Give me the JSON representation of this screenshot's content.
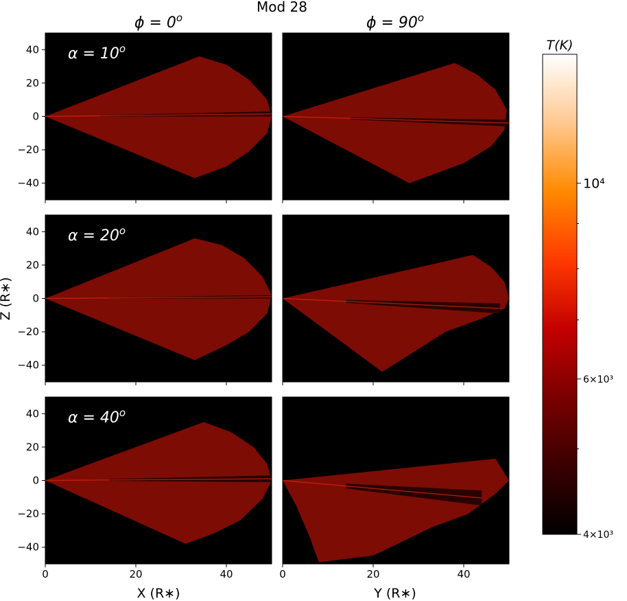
{
  "chart_data": {
    "type": "heatmap",
    "title": "Mod 28",
    "column_titles": [
      "ϕ = 0",
      "ϕ = 90"
    ],
    "column_title_superscript": "o",
    "row_labels": [
      "α = 10",
      "α = 20",
      "α = 40"
    ],
    "row_label_superscript": "o",
    "xlabels": [
      "X (R∗)",
      "Y (R∗)"
    ],
    "ylabel": "Z (R∗)",
    "xlim": [
      0,
      50
    ],
    "ylim": [
      -50,
      50
    ],
    "xticks": [
      "0",
      "20",
      "40"
    ],
    "yticks": [
      "−40",
      "−20",
      "0",
      "20",
      "40"
    ],
    "background_color": "#000000",
    "colorbar": {
      "label": "T(K)",
      "scale": "log",
      "range": [
        4000,
        14000
      ],
      "tick_labels": [
        "4×10³",
        "6×10³",
        "10⁴"
      ],
      "colors": [
        "#000000",
        "#3a0000",
        "#7a0000",
        "#c40000",
        "#ff3a00",
        "#ff8a00",
        "#ffc890",
        "#ffffff"
      ]
    },
    "panels": [
      {
        "row": "α = 10",
        "column": "ϕ = 0",
        "outline": [
          [
            0,
            0
          ],
          [
            34,
            36
          ],
          [
            40,
            31
          ],
          [
            45,
            22
          ],
          [
            49,
            10
          ],
          [
            50,
            0
          ],
          [
            49,
            -10
          ],
          [
            45,
            -21
          ],
          [
            40,
            -30
          ],
          [
            33,
            -37
          ],
          [
            0,
            0
          ]
        ],
        "dark_band": [
          0,
          3
        ],
        "dark_band_extent": [
          12,
          50
        ]
      },
      {
        "row": "α = 10",
        "column": "ϕ = 90",
        "outline": [
          [
            0,
            0
          ],
          [
            38,
            32
          ],
          [
            43,
            25
          ],
          [
            47,
            16
          ],
          [
            49.5,
            4
          ],
          [
            49,
            -8
          ],
          [
            46,
            -18
          ],
          [
            40,
            -28
          ],
          [
            28,
            -40
          ],
          [
            0,
            0
          ]
        ],
        "dark_band": [
          -2,
          -6
        ],
        "dark_band_extent": [
          15,
          50
        ]
      },
      {
        "row": "α = 20",
        "column": "ϕ = 0",
        "outline": [
          [
            0,
            0
          ],
          [
            33,
            36
          ],
          [
            39,
            32
          ],
          [
            44,
            24
          ],
          [
            48,
            13
          ],
          [
            50,
            2
          ],
          [
            49,
            -9
          ],
          [
            45,
            -20
          ],
          [
            40,
            -28
          ],
          [
            33,
            -37
          ],
          [
            0,
            0
          ]
        ],
        "dark_band": [
          0,
          2
        ],
        "dark_band_extent": [
          14,
          50
        ]
      },
      {
        "row": "α = 20",
        "column": "ϕ = 90",
        "outline": [
          [
            0,
            0
          ],
          [
            42,
            26
          ],
          [
            46,
            19
          ],
          [
            49,
            10
          ],
          [
            50,
            0
          ],
          [
            49,
            -6
          ],
          [
            44,
            -12
          ],
          [
            36,
            -20
          ],
          [
            22,
            -44
          ],
          [
            0,
            0
          ]
        ],
        "dark_band": [
          -3,
          -9
        ],
        "dark_band_extent": [
          14,
          48
        ]
      },
      {
        "row": "α = 40",
        "column": "ϕ = 0",
        "outline": [
          [
            0,
            0
          ],
          [
            35,
            35
          ],
          [
            41,
            29
          ],
          [
            46,
            20
          ],
          [
            49,
            10
          ],
          [
            50,
            0
          ],
          [
            48,
            -11
          ],
          [
            43,
            -24
          ],
          [
            37,
            -32
          ],
          [
            31,
            -38
          ],
          [
            0,
            0
          ]
        ],
        "dark_band": [
          -1,
          3
        ],
        "dark_band_extent": [
          14,
          50
        ]
      },
      {
        "row": "α = 40",
        "column": "ϕ = 90",
        "outline": [
          [
            0,
            0
          ],
          [
            47,
            13
          ],
          [
            50,
            0
          ],
          [
            47,
            -8
          ],
          [
            41,
            -20
          ],
          [
            33,
            -28
          ],
          [
            20,
            -45
          ],
          [
            8,
            -49
          ],
          [
            6,
            -34
          ],
          [
            3,
            -15
          ],
          [
            0,
            0
          ]
        ],
        "dark_band": [
          -6,
          -15
        ],
        "dark_band_extent": [
          14,
          44
        ]
      }
    ]
  }
}
